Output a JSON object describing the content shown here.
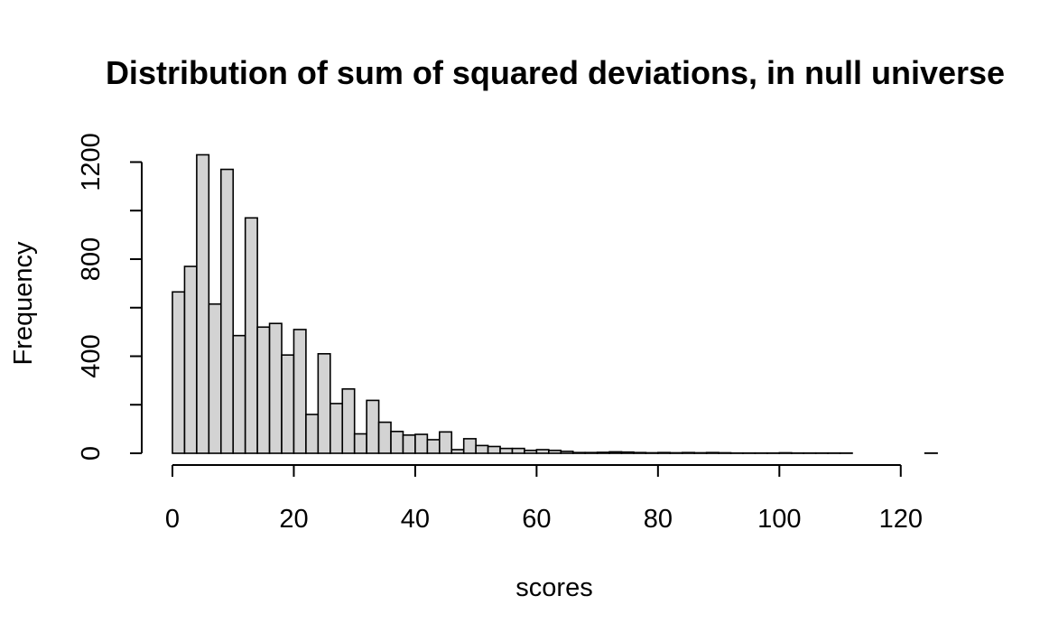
{
  "chart_data": {
    "type": "bar",
    "title": "Distribution of sum of squared deviations, in null universe",
    "xlabel": "scores",
    "ylabel": "Frequency",
    "bin_width": 2,
    "x_bin_starts": [
      0,
      2,
      4,
      6,
      8,
      10,
      12,
      14,
      16,
      18,
      20,
      22,
      24,
      26,
      28,
      30,
      32,
      34,
      36,
      38,
      40,
      42,
      44,
      46,
      48,
      50,
      52,
      54,
      56,
      58,
      60,
      62,
      64,
      66,
      68,
      70,
      72,
      74,
      76,
      78,
      80,
      82,
      84,
      86,
      88,
      90,
      92,
      94,
      96,
      98,
      100,
      102,
      104,
      106,
      108,
      110,
      112,
      114,
      116,
      118,
      120,
      122,
      124
    ],
    "values": [
      665,
      770,
      1230,
      615,
      1170,
      485,
      970,
      520,
      535,
      405,
      510,
      160,
      410,
      205,
      265,
      80,
      218,
      128,
      90,
      75,
      78,
      56,
      88,
      15,
      60,
      32,
      28,
      20,
      20,
      12,
      15,
      12,
      8,
      3,
      3,
      4,
      6,
      5,
      3,
      2,
      3,
      2,
      3,
      2,
      3,
      2,
      1,
      1,
      1,
      1,
      2,
      1,
      1,
      1,
      1,
      1,
      0,
      0,
      0,
      0,
      0,
      0,
      1
    ],
    "xlim": [
      0,
      126
    ],
    "ylim": [
      0,
      1250
    ],
    "x_ticks": [
      0,
      20,
      40,
      60,
      80,
      100,
      120
    ],
    "y_ticks": [
      0,
      200,
      400,
      600,
      800,
      1000,
      1200
    ],
    "x_tick_labels": [
      "0",
      "20",
      "40",
      "60",
      "80",
      "100",
      "120"
    ],
    "y_tick_labels": [
      "0",
      "",
      "400",
      "",
      "800",
      "",
      "1200"
    ],
    "colors": {
      "bar_fill": "#d3d3d3",
      "bar_stroke": "#000000"
    },
    "grid": false,
    "legend": "none"
  }
}
